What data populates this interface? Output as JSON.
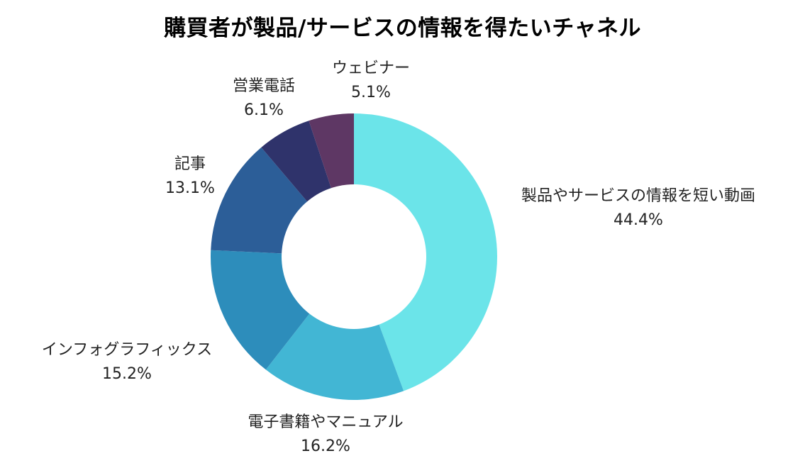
{
  "chart_data": {
    "type": "pie",
    "title": "購買者が製品/サービスの情報を得たいチャネル",
    "donut": true,
    "start": "12 o'clock, clockwise",
    "slices": [
      {
        "label": "製品やサービスの情報を短い動画",
        "value": 44.4,
        "value_label": "44.4%",
        "color": "#6be4e9"
      },
      {
        "label": "電子書籍やマニュアル",
        "value": 16.2,
        "value_label": "16.2%",
        "color": "#42b6d4"
      },
      {
        "label": "インフォグラフィックス",
        "value": 15.2,
        "value_label": "15.2%",
        "color": "#2d8dbb"
      },
      {
        "label": "記事",
        "value": 13.1,
        "value_label": "13.1%",
        "color": "#2c5e98"
      },
      {
        "label": "営業電話",
        "value": 6.1,
        "value_label": "6.1%",
        "color": "#2f336b"
      },
      {
        "label": "ウェビナー",
        "value": 5.1,
        "value_label": "5.1%",
        "color": "#5e3764"
      }
    ]
  }
}
